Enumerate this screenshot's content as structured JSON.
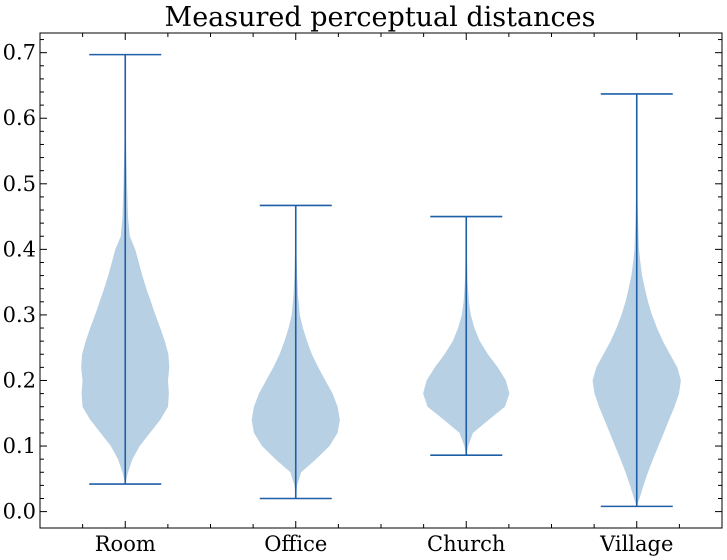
{
  "chart_data": {
    "type": "violin",
    "title": "Measured perceptual distances",
    "xlabel": "",
    "ylabel": "",
    "ylim": [
      -0.025,
      0.73
    ],
    "yticks": [
      0.0,
      0.1,
      0.2,
      0.3,
      0.4,
      0.5,
      0.6,
      0.7
    ],
    "ytick_labels": [
      "0.0",
      "0.1",
      "0.2",
      "0.3",
      "0.4",
      "0.5",
      "0.6",
      "0.7"
    ],
    "grid": false,
    "colors": {
      "body": "#b3cde3",
      "lines": "#1f5fa8"
    },
    "categories": [
      "Room",
      "Office",
      "Church",
      "Village"
    ],
    "series": [
      {
        "category": "Room",
        "min": 0.042,
        "max": 0.697,
        "profile": [
          [
            0.042,
            0.0
          ],
          [
            0.06,
            0.06
          ],
          [
            0.08,
            0.16
          ],
          [
            0.1,
            0.32
          ],
          [
            0.12,
            0.55
          ],
          [
            0.14,
            0.78
          ],
          [
            0.16,
            0.95
          ],
          [
            0.18,
            0.97
          ],
          [
            0.2,
            0.95
          ],
          [
            0.22,
            0.98
          ],
          [
            0.24,
            0.96
          ],
          [
            0.26,
            0.88
          ],
          [
            0.28,
            0.78
          ],
          [
            0.3,
            0.67
          ],
          [
            0.32,
            0.57
          ],
          [
            0.34,
            0.47
          ],
          [
            0.36,
            0.38
          ],
          [
            0.38,
            0.3
          ],
          [
            0.4,
            0.22
          ],
          [
            0.42,
            0.1
          ],
          [
            0.45,
            0.06
          ],
          [
            0.5,
            0.04
          ],
          [
            0.55,
            0.02
          ],
          [
            0.6,
            0.01
          ],
          [
            0.697,
            0.0
          ]
        ]
      },
      {
        "category": "Office",
        "min": 0.02,
        "max": 0.467,
        "profile": [
          [
            0.02,
            0.0
          ],
          [
            0.04,
            0.03
          ],
          [
            0.06,
            0.12
          ],
          [
            0.08,
            0.45
          ],
          [
            0.1,
            0.75
          ],
          [
            0.12,
            0.93
          ],
          [
            0.14,
            0.98
          ],
          [
            0.16,
            0.93
          ],
          [
            0.18,
            0.82
          ],
          [
            0.2,
            0.66
          ],
          [
            0.22,
            0.5
          ],
          [
            0.24,
            0.36
          ],
          [
            0.26,
            0.25
          ],
          [
            0.28,
            0.16
          ],
          [
            0.3,
            0.09
          ],
          [
            0.33,
            0.05
          ],
          [
            0.36,
            0.03
          ],
          [
            0.4,
            0.015
          ],
          [
            0.467,
            0.0
          ]
        ]
      },
      {
        "category": "Church",
        "min": 0.086,
        "max": 0.45,
        "profile": [
          [
            0.086,
            0.0
          ],
          [
            0.1,
            0.04
          ],
          [
            0.12,
            0.15
          ],
          [
            0.14,
            0.5
          ],
          [
            0.16,
            0.86
          ],
          [
            0.18,
            0.96
          ],
          [
            0.2,
            0.88
          ],
          [
            0.22,
            0.7
          ],
          [
            0.24,
            0.48
          ],
          [
            0.26,
            0.3
          ],
          [
            0.28,
            0.18
          ],
          [
            0.3,
            0.1
          ],
          [
            0.32,
            0.06
          ],
          [
            0.35,
            0.03
          ],
          [
            0.4,
            0.01
          ],
          [
            0.45,
            0.0
          ]
        ]
      },
      {
        "category": "Village",
        "min": 0.008,
        "max": 0.637,
        "profile": [
          [
            0.008,
            0.0
          ],
          [
            0.02,
            0.06
          ],
          [
            0.04,
            0.15
          ],
          [
            0.06,
            0.25
          ],
          [
            0.08,
            0.36
          ],
          [
            0.1,
            0.48
          ],
          [
            0.12,
            0.6
          ],
          [
            0.14,
            0.72
          ],
          [
            0.16,
            0.84
          ],
          [
            0.18,
            0.94
          ],
          [
            0.2,
            0.98
          ],
          [
            0.22,
            0.9
          ],
          [
            0.24,
            0.74
          ],
          [
            0.26,
            0.58
          ],
          [
            0.28,
            0.45
          ],
          [
            0.3,
            0.34
          ],
          [
            0.32,
            0.25
          ],
          [
            0.34,
            0.18
          ],
          [
            0.36,
            0.12
          ],
          [
            0.38,
            0.08
          ],
          [
            0.4,
            0.05
          ],
          [
            0.45,
            0.025
          ],
          [
            0.5,
            0.01
          ],
          [
            0.637,
            0.0
          ]
        ]
      }
    ]
  }
}
